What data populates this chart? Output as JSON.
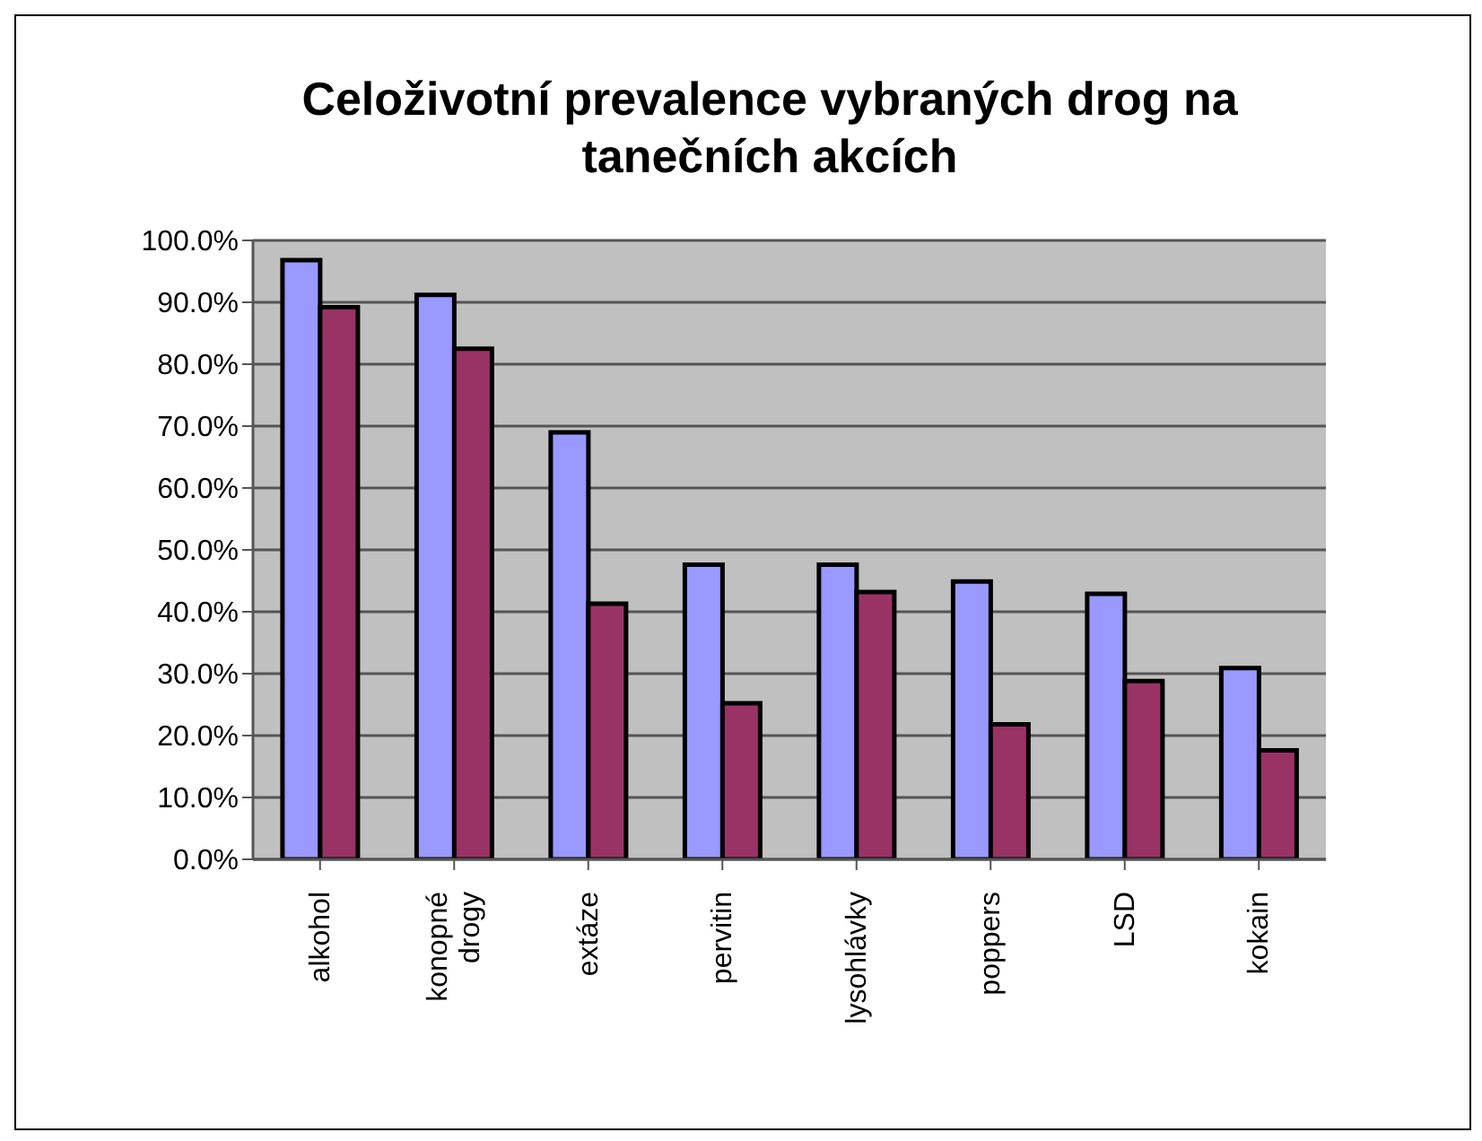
{
  "chart_data": {
    "type": "bar",
    "title": "Celoživotní prevalence vybraných drog na tanečních akcích",
    "categories": [
      "alkohol",
      "konopné drogy",
      "extáze",
      "pervitin",
      "lysohlávky",
      "poppers",
      "LSD",
      "kokain"
    ],
    "series": [
      {
        "color": "#9999ff",
        "values": [
          96.8,
          91.2,
          69.0,
          47.6,
          47.6,
          44.9,
          42.9,
          30.9
        ]
      },
      {
        "color": "#993366",
        "values": [
          89.2,
          82.5,
          41.3,
          25.2,
          43.2,
          21.8,
          28.8,
          17.6
        ]
      }
    ],
    "ylim": [
      0,
      100
    ],
    "yticks": [
      {
        "value": 0,
        "label": "0.0%"
      },
      {
        "value": 10,
        "label": "10.0%"
      },
      {
        "value": 20,
        "label": "20.0%"
      },
      {
        "value": 30,
        "label": "30.0%"
      },
      {
        "value": 40,
        "label": "40.0%"
      },
      {
        "value": 50,
        "label": "50.0%"
      },
      {
        "value": 60,
        "label": "60.0%"
      },
      {
        "value": 70,
        "label": "70.0%"
      },
      {
        "value": 80,
        "label": "80.0%"
      },
      {
        "value": 90,
        "label": "90.0%"
      },
      {
        "value": 100,
        "label": "100.0%"
      }
    ],
    "grid": "y",
    "legend": false
  }
}
